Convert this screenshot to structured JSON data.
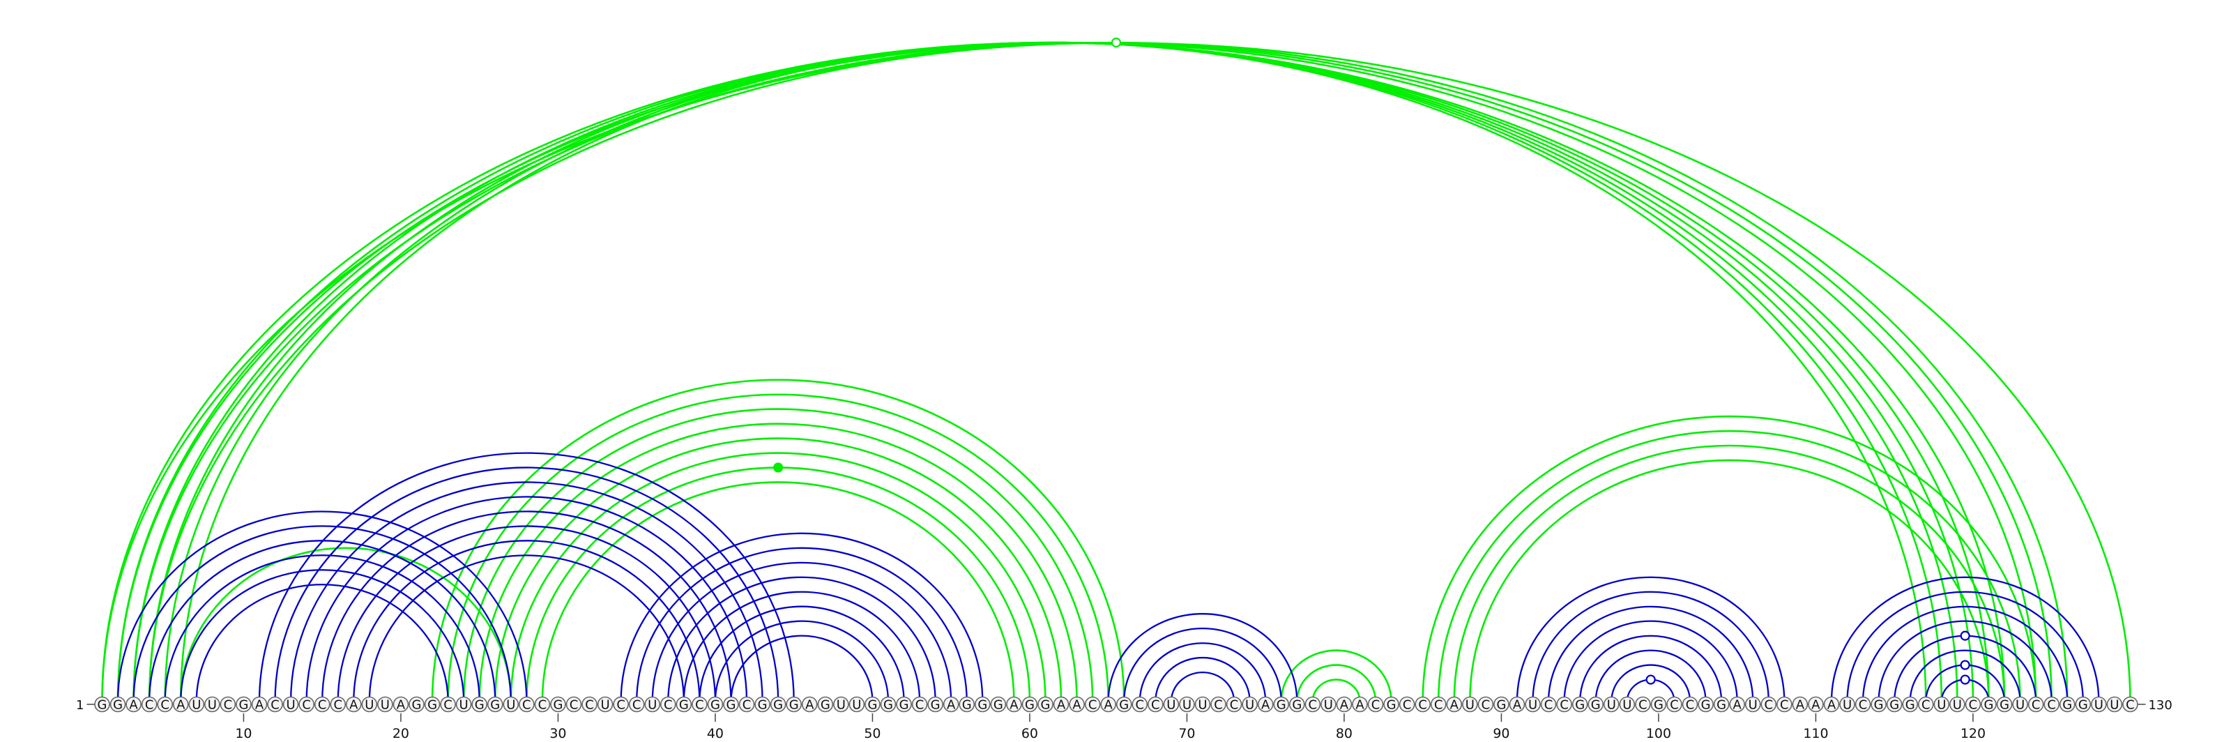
{
  "sequence": "GGACCAUUCGACUCCCAUUAGGCUGGUCCGCCUCCUCGCGGCGGGAGUUGGGCGAGGGAGGAACAGCCUUUCCUAGGCUAACGCCCAUCGAUCCGGUUCGCCGGAUCCAAAUCGGGCUUCGGUCCGGUUC",
  "start_label": "1",
  "end_label": "130",
  "position_ticks": [
    10,
    20,
    30,
    40,
    50,
    60,
    70,
    80,
    90,
    100,
    110,
    120
  ],
  "colors": {
    "predicted_pairs": "#00ee00",
    "reference_pairs": "#0000cc",
    "base_fill": "#f4f4f4",
    "base_stroke": "#666666"
  },
  "green_pairs": [
    [
      1,
      122
    ],
    [
      2,
      121
    ],
    [
      3,
      120
    ],
    [
      4,
      119
    ],
    [
      5,
      118
    ],
    [
      6,
      117
    ],
    [
      2,
      124
    ],
    [
      3,
      125
    ],
    [
      4,
      126
    ],
    [
      1,
      130
    ],
    [
      6,
      27
    ],
    [
      22,
      66
    ],
    [
      23,
      65
    ],
    [
      24,
      64
    ],
    [
      25,
      63
    ],
    [
      26,
      62
    ],
    [
      27,
      61
    ],
    [
      28,
      60
    ],
    [
      29,
      59
    ],
    [
      76,
      83
    ],
    [
      77,
      82
    ],
    [
      78,
      81
    ],
    [
      85,
      124
    ],
    [
      86,
      123
    ],
    [
      87,
      122
    ],
    [
      88,
      121
    ]
  ],
  "green_markers": [
    {
      "pair": [
        1,
        130
      ],
      "filled": false
    },
    {
      "pair": [
        28,
        60
      ],
      "filled": true
    }
  ],
  "blue_pairs": [
    [
      2,
      28
    ],
    [
      3,
      27
    ],
    [
      4,
      26
    ],
    [
      5,
      25
    ],
    [
      6,
      24
    ],
    [
      7,
      23
    ],
    [
      11,
      45
    ],
    [
      12,
      44
    ],
    [
      13,
      43
    ],
    [
      14,
      42
    ],
    [
      15,
      41
    ],
    [
      16,
      40
    ],
    [
      17,
      39
    ],
    [
      18,
      38
    ],
    [
      34,
      57
    ],
    [
      35,
      56
    ],
    [
      36,
      55
    ],
    [
      37,
      54
    ],
    [
      38,
      53
    ],
    [
      39,
      52
    ],
    [
      40,
      51
    ],
    [
      41,
      50
    ],
    [
      65,
      77
    ],
    [
      66,
      76
    ],
    [
      67,
      75
    ],
    [
      68,
      74
    ],
    [
      69,
      73
    ],
    [
      91,
      108
    ],
    [
      92,
      107
    ],
    [
      93,
      106
    ],
    [
      94,
      105
    ],
    [
      95,
      104
    ],
    [
      96,
      103
    ],
    [
      97,
      102
    ],
    [
      98,
      101
    ],
    [
      111,
      128
    ],
    [
      112,
      127
    ],
    [
      113,
      126
    ],
    [
      114,
      125
    ],
    [
      115,
      124
    ],
    [
      116,
      123
    ],
    [
      117,
      122
    ],
    [
      118,
      121
    ]
  ],
  "blue_markers": [
    {
      "pair": [
        98,
        101
      ],
      "filled": false
    },
    {
      "pair": [
        115,
        124
      ],
      "filled": false
    },
    {
      "pair": [
        117,
        122
      ],
      "filled": false
    },
    {
      "pair": [
        118,
        121
      ],
      "filled": false
    }
  ]
}
